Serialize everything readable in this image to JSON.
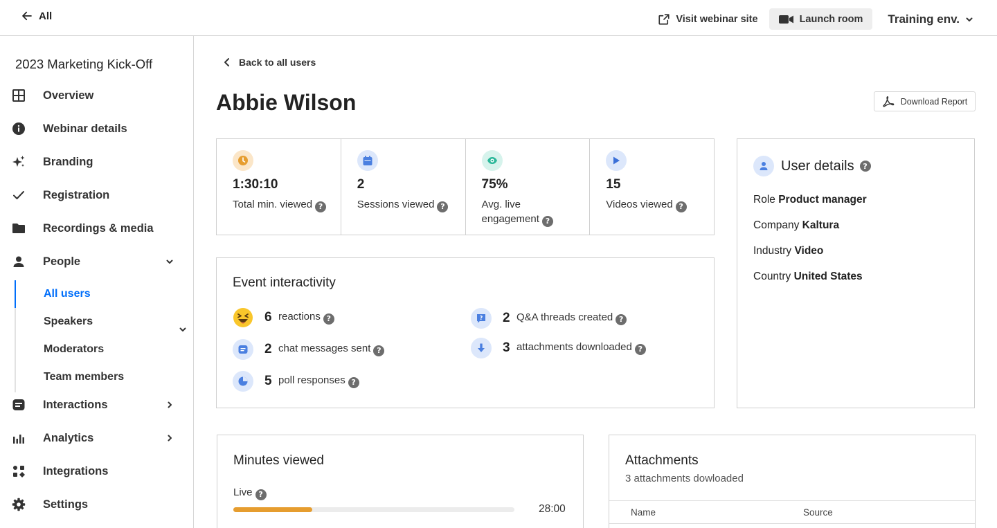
{
  "topbar": {
    "back_label": "All",
    "visit_label": "Visit webinar site",
    "launch_label": "Launch room",
    "env_label": "Training env."
  },
  "sidebar": {
    "event_title": "2023 Marketing Kick-Off",
    "items": [
      {
        "label": "Overview",
        "icon": "grid-icon"
      },
      {
        "label": "Webinar details",
        "icon": "info-icon"
      },
      {
        "label": "Branding",
        "icon": "sparkle-icon"
      },
      {
        "label": "Registration",
        "icon": "check-icon"
      },
      {
        "label": "Recordings & media",
        "icon": "folder-icon"
      },
      {
        "label": "People",
        "icon": "person-icon"
      },
      {
        "label": "Interactions",
        "icon": "chat-icon"
      },
      {
        "label": "Analytics",
        "icon": "bar-chart-icon"
      },
      {
        "label": "Integrations",
        "icon": "apps-icon"
      },
      {
        "label": "Settings",
        "icon": "gear-icon"
      }
    ],
    "people_sub": [
      "All users",
      "Speakers",
      "Moderators",
      "Team members"
    ],
    "active_color": "#006efa"
  },
  "main": {
    "back_label": "Back to all users",
    "user_name": "Abbie Wilson",
    "download_label": "Download Report",
    "stats": [
      {
        "value": "1:30:10",
        "label": "Total min. viewed",
        "icon": "clock-icon",
        "color": "#e69d2f"
      },
      {
        "value": "2",
        "label": "Sessions viewed",
        "icon": "calendar-icon",
        "color": "#4a7fe0"
      },
      {
        "value": "75%",
        "label": "Avg. live engagement",
        "icon": "eye-icon",
        "color": "#2cb89a"
      },
      {
        "value": "15",
        "label": "Videos viewed",
        "icon": "play-icon",
        "color": "#3a6fd8"
      }
    ],
    "interactivity": {
      "title": "Event interactivity",
      "left": [
        {
          "count": "6",
          "label": "reactions",
          "icon": "emoji-icon"
        },
        {
          "count": "2",
          "label": "chat messages sent",
          "icon": "chat-bubble-icon"
        },
        {
          "count": "5",
          "label": "poll responses",
          "icon": "pie-icon"
        }
      ],
      "right": [
        {
          "count": "2",
          "label": "Q&A threads created",
          "icon": "question-bubble-icon"
        },
        {
          "count": "3",
          "label": "attachments downloaded",
          "icon": "download-arrow-icon"
        }
      ]
    },
    "user_details": {
      "title": "User details",
      "rows": [
        {
          "key": "Role",
          "value": "Product manager"
        },
        {
          "key": "Company",
          "value": "Kaltura"
        },
        {
          "key": "Industry",
          "value": "Video"
        },
        {
          "key": "Country",
          "value": "United States"
        }
      ]
    },
    "minutes": {
      "title": "Minutes viewed",
      "live_label": "Live",
      "live_value": "28:00",
      "live_progress": 0.28
    },
    "attachments": {
      "title": "Attachments",
      "subtitle": "3 attachments dowloaded",
      "columns": [
        "Name",
        "Source"
      ]
    }
  }
}
